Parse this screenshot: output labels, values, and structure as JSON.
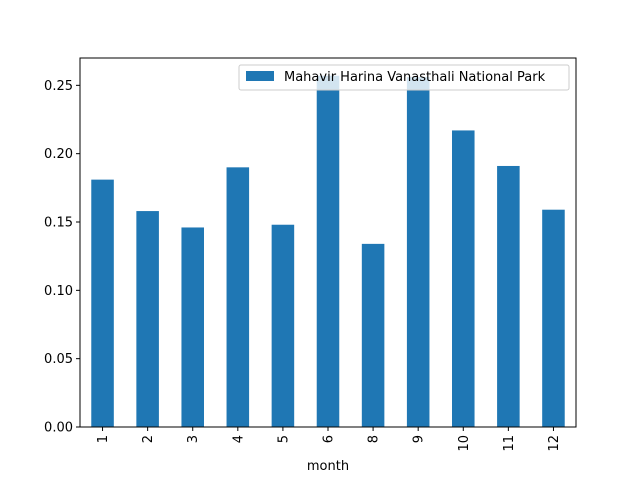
{
  "chart_data": {
    "type": "bar",
    "title": "",
    "xlabel": "month",
    "ylabel": "",
    "categories": [
      "1",
      "2",
      "3",
      "4",
      "5",
      "6",
      "8",
      "9",
      "10",
      "11",
      "12"
    ],
    "series": [
      {
        "name": "Mahavir Harina Vanasthali National Park",
        "color": "#1f77b4",
        "values": [
          0.181,
          0.158,
          0.146,
          0.19,
          0.148,
          0.257,
          0.134,
          0.256,
          0.217,
          0.191,
          0.159
        ]
      }
    ],
    "ylim": [
      0,
      0.27
    ],
    "yticks": [
      "0.00",
      "0.05",
      "0.10",
      "0.15",
      "0.20",
      "0.25"
    ],
    "ytick_values": [
      0,
      0.05,
      0.1,
      0.15,
      0.2,
      0.25
    ],
    "grid": false,
    "legend_position": "top-right"
  }
}
